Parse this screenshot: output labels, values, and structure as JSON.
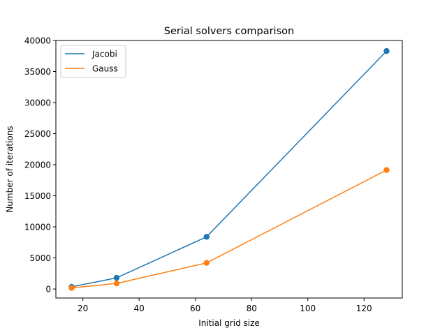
{
  "chart_data": {
    "type": "line",
    "title": "Serial solvers comparison",
    "xlabel": "Initial grid size",
    "ylabel": "Number of iterations",
    "x": [
      16,
      32,
      64,
      128
    ],
    "series": [
      {
        "name": "Jacobi",
        "values": [
          350,
          1800,
          8400,
          38300
        ],
        "color": "#1f77b4"
      },
      {
        "name": "Gauss",
        "values": [
          180,
          900,
          4200,
          19150
        ],
        "color": "#ff7f0e"
      }
    ],
    "xlim": [
      10.4,
      133.6
    ],
    "ylim": [
      -1450,
      40000
    ],
    "xticks": [
      20,
      40,
      60,
      80,
      100,
      120
    ],
    "yticks": [
      0,
      5000,
      10000,
      15000,
      20000,
      25000,
      30000,
      35000,
      40000
    ],
    "grid": false,
    "legend_position": "upper left"
  }
}
